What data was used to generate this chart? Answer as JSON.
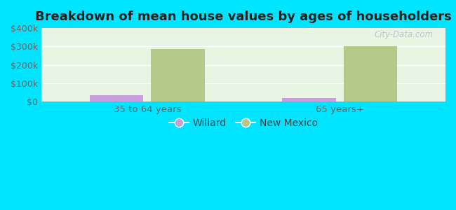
{
  "title": "Breakdown of mean house values by ages of householders",
  "categories": [
    "35 to 64 years",
    "65 years+"
  ],
  "series": {
    "Willard": [
      35000,
      20000
    ],
    "New Mexico": [
      285000,
      300000
    ]
  },
  "bar_colors": {
    "Willard": "#c9a0dc",
    "New Mexico": "#b5c98a"
  },
  "background_color": "#00e5ff",
  "plot_bg_gradient_top": "#ffffff",
  "plot_bg_gradient_bottom": "#d8f0d0",
  "ylim": [
    0,
    400000
  ],
  "yticks": [
    0,
    100000,
    200000,
    300000,
    400000
  ],
  "ytick_labels": [
    "$0",
    "$100k",
    "$200k",
    "$300k",
    "$400k"
  ],
  "watermark": "City-Data.com",
  "legend_entries": [
    "Willard",
    "New Mexico"
  ],
  "bar_width": 0.28,
  "title_fontsize": 13
}
